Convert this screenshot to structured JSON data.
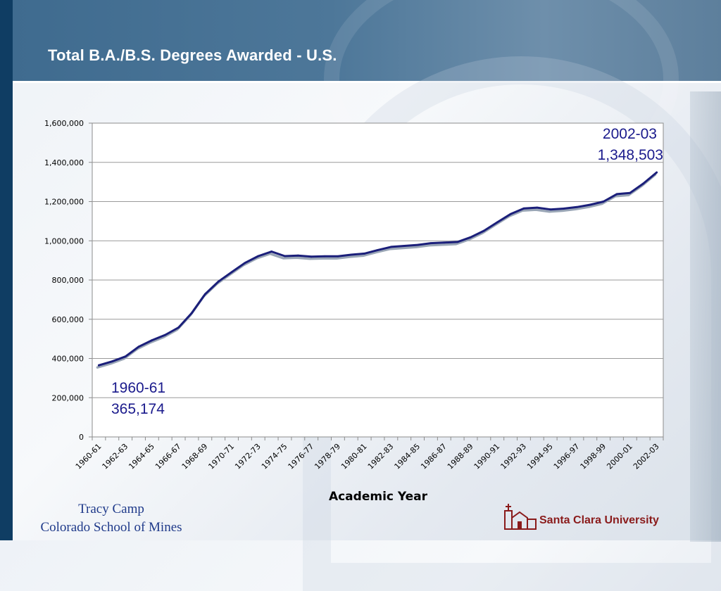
{
  "slide": {
    "title": "Total B.A./B.S. Degrees Awarded - U.S.",
    "author": "Tracy Camp",
    "institution": "Colorado School of Mines",
    "logo_text": "Santa Clara University"
  },
  "colors": {
    "line": "#1b1f7a",
    "line_shadow": "#9aa6b6",
    "callout_text": "#1a1a8c",
    "brand_red": "#8a1b1b"
  },
  "callouts": {
    "start": {
      "period": "1960-61",
      "value": "365,174"
    },
    "end": {
      "period": "2002-03",
      "value": "1,348,503"
    }
  },
  "chart_data": {
    "type": "line",
    "title": "",
    "xlabel": "Academic Year",
    "ylabel": "",
    "ylim": [
      0,
      1600000
    ],
    "yticks": [
      0,
      200000,
      400000,
      600000,
      800000,
      1000000,
      1200000,
      1400000,
      1600000
    ],
    "ytick_labels": [
      "0",
      "200,000",
      "400,000",
      "600,000",
      "800,000",
      "1,000,000",
      "1,200,000",
      "1,400,000",
      "1,600,000"
    ],
    "grid": true,
    "categories": [
      "1960-61",
      "1961-62",
      "1962-63",
      "1963-64",
      "1964-65",
      "1965-66",
      "1966-67",
      "1967-68",
      "1968-69",
      "1969-70",
      "1970-71",
      "1971-72",
      "1972-73",
      "1973-74",
      "1974-75",
      "1975-76",
      "1976-77",
      "1977-78",
      "1978-79",
      "1979-80",
      "1980-81",
      "1981-82",
      "1982-83",
      "1983-84",
      "1984-85",
      "1985-86",
      "1986-87",
      "1987-88",
      "1988-89",
      "1989-90",
      "1990-91",
      "1991-92",
      "1992-93",
      "1993-94",
      "1994-95",
      "1995-96",
      "1996-97",
      "1997-98",
      "1998-99",
      "1999-00",
      "2000-01",
      "2001-02",
      "2002-03"
    ],
    "xtick_labels": [
      "1960-61",
      "1962-63",
      "1964-65",
      "1966-67",
      "1968-69",
      "1970-71",
      "1972-73",
      "1974-75",
      "1976-77",
      "1978-79",
      "1980-81",
      "1982-83",
      "1984-85",
      "1986-87",
      "1988-89",
      "1990-91",
      "1992-93",
      "1994-95",
      "1996-97",
      "1998-99",
      "2000-01",
      "2002-03"
    ],
    "series": [
      {
        "values": [
          365174,
          385000,
          410000,
          460000,
          493000,
          520000,
          558000,
          632000,
          728000,
          792000,
          840000,
          887000,
          922000,
          945000,
          922000,
          925000,
          919000,
          921000,
          921000,
          929000,
          935000,
          953000,
          969000,
          974000,
          979000,
          988000,
          991000,
          994000,
          1018000,
          1051000,
          1094000,
          1136000,
          1165000,
          1169000,
          1160000,
          1164000,
          1172000,
          1184000,
          1200000,
          1238000,
          1244000,
          1292000,
          1348503
        ]
      }
    ]
  }
}
